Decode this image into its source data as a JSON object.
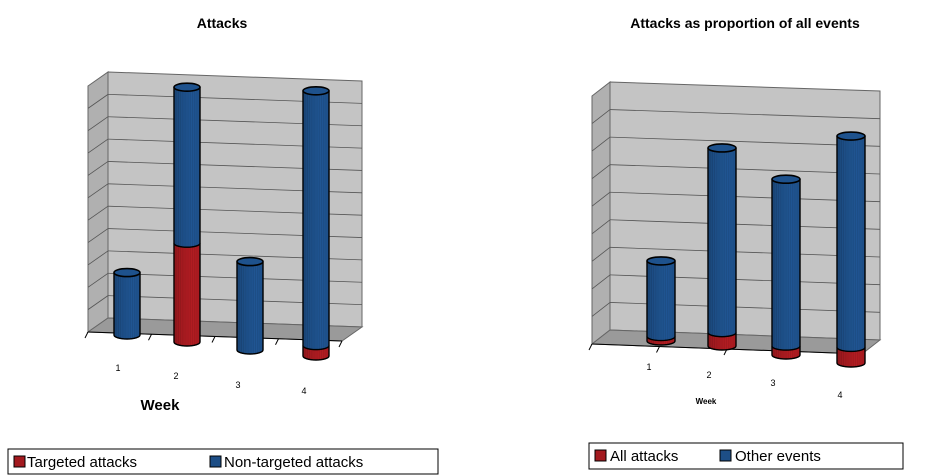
{
  "colors": {
    "red": "#a31a1f",
    "blue": "#1d4e86",
    "wall": "#c4c4c4",
    "floor": "#9a9a9a"
  },
  "chart_data": [
    {
      "type": "bar",
      "stacked": true,
      "style": "3d-cylinder",
      "title": "Attacks",
      "xlabel": "Week",
      "categories": [
        "1",
        "2",
        "3",
        "4"
      ],
      "series": [
        {
          "name": "Targeted attacks",
          "color": "#a31a1f",
          "values": [
            0,
            1.9,
            0,
            0.2
          ]
        },
        {
          "name": "Non-targeted attacks",
          "color": "#1d4e86",
          "values": [
            1.2,
            3.0,
            1.7,
            4.9
          ]
        }
      ],
      "ylim": [
        0,
        5
      ],
      "grid": true,
      "legend": "bottom"
    },
    {
      "type": "bar",
      "stacked": true,
      "style": "3d-cylinder",
      "title": "Attacks as proportion of all events",
      "xlabel": "Week",
      "categories": [
        "1",
        "2",
        "3",
        "4"
      ],
      "series": [
        {
          "name": "All attacks",
          "color": "#a31a1f",
          "values": [
            0.1,
            0.3,
            0.2,
            0.35
          ]
        },
        {
          "name": "Other events",
          "color": "#1d4e86",
          "values": [
            1.7,
            4.15,
            3.75,
            4.75
          ]
        }
      ],
      "ylim": [
        0,
        5
      ],
      "grid": true,
      "legend": "bottom"
    }
  ]
}
